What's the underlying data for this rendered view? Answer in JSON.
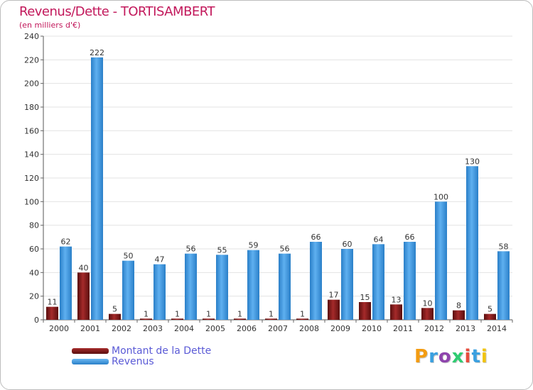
{
  "chart_data": {
    "type": "bar",
    "title": "Revenus/Dette - TORTISAMBERT",
    "subtitle": "(en milliers d'€)",
    "categories": [
      "2000",
      "2001",
      "2002",
      "2003",
      "2004",
      "2005",
      "2006",
      "2007",
      "2008",
      "2009",
      "2010",
      "2011",
      "2012",
      "2013",
      "2014"
    ],
    "series": [
      {
        "name": "Montant de la Dette",
        "color": "#7a1414",
        "values": [
          11,
          40,
          5,
          1,
          1,
          1,
          1,
          1,
          1,
          17,
          15,
          13,
          10,
          8,
          5
        ]
      },
      {
        "name": "Revenus",
        "color": "#3a97e0",
        "values": [
          62,
          222,
          50,
          47,
          56,
          55,
          59,
          56,
          66,
          60,
          64,
          66,
          100,
          130,
          58
        ]
      }
    ],
    "ylim": [
      0,
      240
    ],
    "yticks": [
      0,
      20,
      40,
      60,
      80,
      100,
      120,
      140,
      160,
      180,
      200,
      220,
      240
    ],
    "grid": true,
    "legend": "bottom-left"
  },
  "logo": {
    "text": "Proxiti",
    "colors": [
      "#f39c12",
      "#3aa0e0",
      "#8e44ad",
      "#2ecc71",
      "#e74c3c",
      "#3aa0e0",
      "#f1c40f"
    ]
  }
}
